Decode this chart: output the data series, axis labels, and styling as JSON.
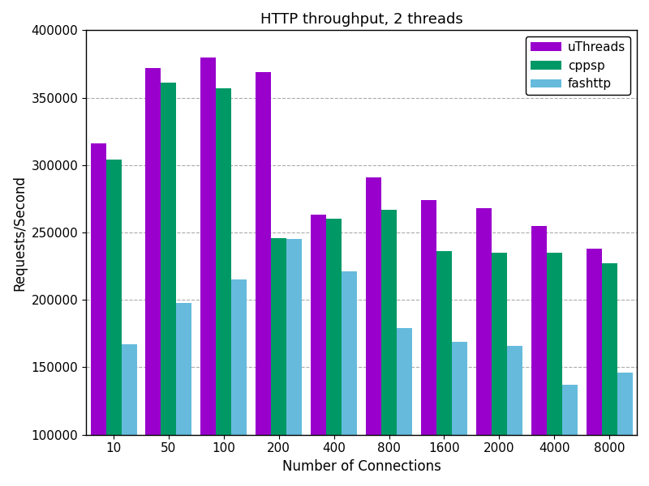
{
  "title": "HTTP throughput, 2 threads",
  "xlabel": "Number of Connections",
  "ylabel": "Requests/Second",
  "categories": [
    "10",
    "50",
    "100",
    "200",
    "400",
    "800",
    "1600",
    "2000",
    "4000",
    "8000"
  ],
  "series": {
    "uThreads": {
      "values": [
        316000,
        372000,
        380000,
        369000,
        263000,
        291000,
        274000,
        268000,
        255000,
        238000
      ],
      "color": "#9900cc"
    },
    "cppsp": {
      "values": [
        304000,
        361000,
        357000,
        246000,
        260000,
        267000,
        236000,
        235000,
        235000,
        227000
      ],
      "color": "#009966"
    },
    "fashttp": {
      "values": [
        167000,
        198000,
        215000,
        245000,
        221000,
        179000,
        169000,
        166000,
        137000,
        146000
      ],
      "color": "#66bbdd"
    }
  },
  "ylim": [
    100000,
    400000
  ],
  "yticks": [
    100000,
    150000,
    200000,
    250000,
    300000,
    350000,
    400000
  ],
  "legend_labels": [
    "uThreads",
    "cppsp",
    "fashttp"
  ],
  "plot_bg": "#ffffff",
  "fig_bg": "#ffffff",
  "grid_color": "#aaaaaa",
  "bar_width": 0.28,
  "title_fontsize": 13,
  "axis_label_fontsize": 12,
  "tick_fontsize": 11
}
